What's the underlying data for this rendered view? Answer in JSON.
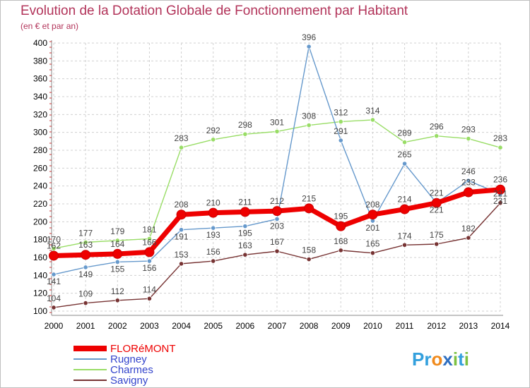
{
  "title": "Evolution de la Dotation Globale de Fonctionnement par Habitant",
  "subtitle": "(en € et par an)",
  "brand": {
    "p": "Pr",
    "o": "o",
    "x": "x",
    "i1": "i",
    "t": "t",
    "i2": "i"
  },
  "colors": {
    "title": "#b2345a",
    "axis": "#888888",
    "grid": "#d0d0d0",
    "florEmont": "#ee0000",
    "rugney": "#6699cc",
    "charmes": "#99dd66",
    "savigny": "#773333"
  },
  "chart_data": {
    "type": "line",
    "x": [
      "2000",
      "2001",
      "2002",
      "2003",
      "2004",
      "2005",
      "2006",
      "2007",
      "2008",
      "2009",
      "2010",
      "2011",
      "2012",
      "2013",
      "2014"
    ],
    "ylim": [
      100,
      400
    ],
    "yticks": [
      100,
      120,
      140,
      160,
      180,
      200,
      220,
      240,
      260,
      280,
      300,
      320,
      340,
      360,
      380,
      400
    ],
    "legend_position": "bottom-left",
    "series": [
      {
        "name": "FLORéMONT",
        "color": "#ee0000",
        "values": [
          162,
          163,
          164,
          166,
          208,
          210,
          211,
          212,
          215,
          195,
          208,
          214,
          221,
          233,
          236
        ]
      },
      {
        "name": "Rugney",
        "color": "#6699cc",
        "values": [
          141,
          149,
          155,
          156,
          191,
          193,
          195,
          203,
          396,
          291,
          201,
          265,
          221,
          246,
          231
        ]
      },
      {
        "name": "Charmes",
        "color": "#99dd66",
        "values": [
          170,
          177,
          179,
          181,
          283,
          292,
          298,
          301,
          308,
          312,
          314,
          289,
          296,
          293,
          283
        ]
      },
      {
        "name": "Savigny",
        "color": "#773333",
        "values": [
          104,
          109,
          112,
          114,
          153,
          156,
          163,
          167,
          158,
          168,
          165,
          174,
          175,
          182,
          221
        ]
      }
    ]
  }
}
